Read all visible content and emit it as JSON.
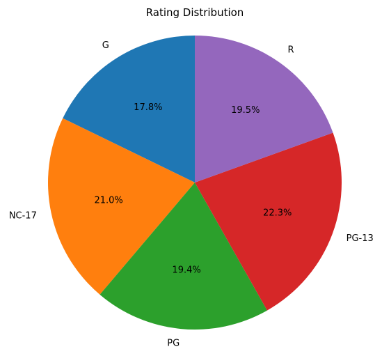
{
  "chart_data": {
    "type": "pie",
    "title": "Rating Distribution",
    "categories": [
      "G",
      "NC-17",
      "PG",
      "PG-13",
      "R"
    ],
    "values": [
      17.8,
      21.0,
      19.4,
      22.3,
      19.5
    ],
    "value_labels": [
      "17.8%",
      "21.0%",
      "19.4%",
      "22.3%",
      "19.5%"
    ],
    "colors": [
      "#1f77b4",
      "#ff7f0e",
      "#2ca02c",
      "#d62728",
      "#9467bd"
    ],
    "start_angle_deg": 90,
    "direction": "counterclockwise",
    "legend": "none"
  }
}
